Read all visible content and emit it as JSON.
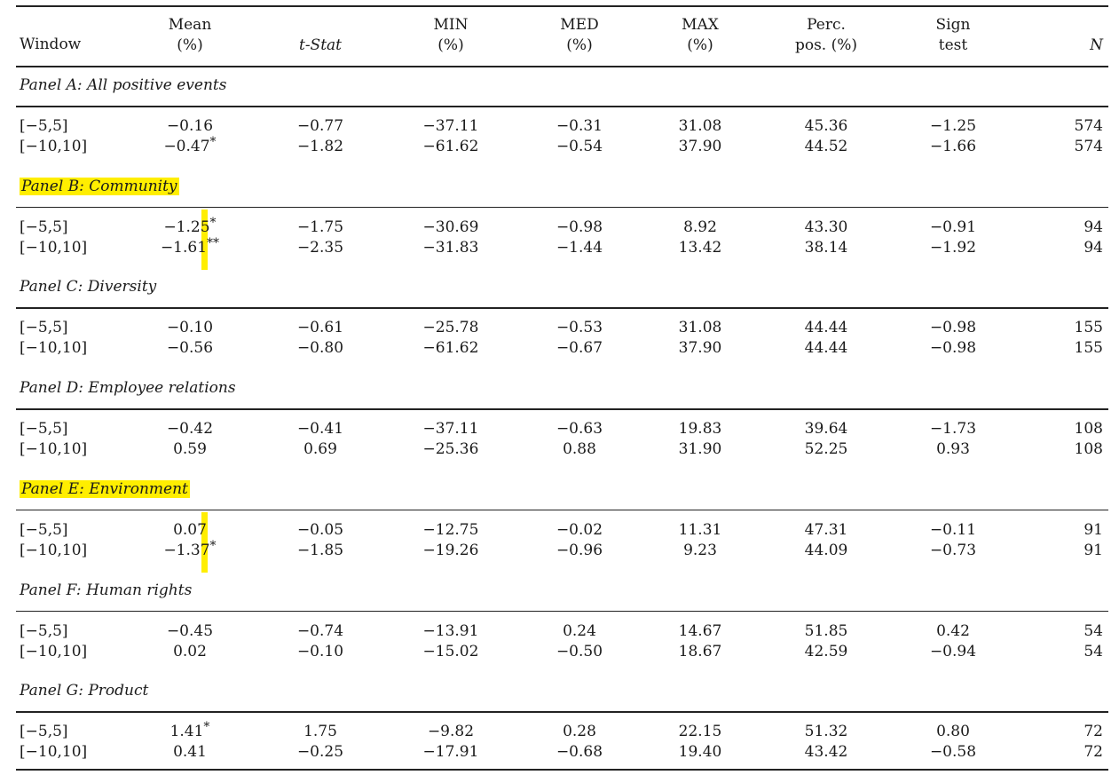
{
  "headers": {
    "window": "Window",
    "mean": [
      "Mean",
      "(%)"
    ],
    "tstat": "t-Stat",
    "min": [
      "MIN",
      "(%)"
    ],
    "med": [
      "MED",
      "(%)"
    ],
    "max": [
      "MAX",
      "(%)"
    ],
    "perc": [
      "Perc.",
      "pos. (%)"
    ],
    "sign": [
      "Sign",
      "test"
    ],
    "n": "N"
  },
  "panels": [
    {
      "title": "Panel A: All positive events",
      "highlight": false,
      "rows": [
        {
          "window": "[−5,5]",
          "mean": "−0.16",
          "mean_star": "",
          "t": "−0.77",
          "min": "−37.11",
          "med": "−0.31",
          "max": "31.08",
          "perc": "45.36",
          "sign": "−1.25",
          "n": "574"
        },
        {
          "window": "[−10,10]",
          "mean": "−0.47",
          "mean_star": "*",
          "t": "−1.82",
          "min": "−61.62",
          "med": "−0.54",
          "max": "37.90",
          "perc": "44.52",
          "sign": "−1.66",
          "n": "574"
        }
      ]
    },
    {
      "title": "Panel B: Community",
      "highlight": true,
      "rows": [
        {
          "window": "[−5,5]",
          "mean": "−1.25",
          "mean_star": "*",
          "t": "−1.75",
          "min": "−30.69",
          "med": "−0.98",
          "max": "8.92",
          "perc": "43.30",
          "sign": "−0.91",
          "n": "94"
        },
        {
          "window": "[−10,10]",
          "mean": "−1.61",
          "mean_star": "**",
          "t": "−2.35",
          "min": "−31.83",
          "med": "−1.44",
          "max": "13.42",
          "perc": "38.14",
          "sign": "−1.92",
          "n": "94"
        }
      ]
    },
    {
      "title": "Panel C: Diversity",
      "highlight": false,
      "rows": [
        {
          "window": "[−5,5]",
          "mean": "−0.10",
          "mean_star": "",
          "t": "−0.61",
          "min": "−25.78",
          "med": "−0.53",
          "max": "31.08",
          "perc": "44.44",
          "sign": "−0.98",
          "n": "155"
        },
        {
          "window": "[−10,10]",
          "mean": "−0.56",
          "mean_star": "",
          "t": "−0.80",
          "min": "−61.62",
          "med": "−0.67",
          "max": "37.90",
          "perc": "44.44",
          "sign": "−0.98",
          "n": "155"
        }
      ]
    },
    {
      "title": "Panel D: Employee relations",
      "highlight": false,
      "rows": [
        {
          "window": "[−5,5]",
          "mean": "−0.42",
          "mean_star": "",
          "t": "−0.41",
          "min": "−37.11",
          "med": "−0.63",
          "max": "19.83",
          "perc": "39.64",
          "sign": "−1.73",
          "n": "108"
        },
        {
          "window": "[−10,10]",
          "mean": "0.59",
          "mean_star": "",
          "t": "0.69",
          "min": "−25.36",
          "med": "0.88",
          "max": "31.90",
          "perc": "52.25",
          "sign": "0.93",
          "n": "108"
        }
      ]
    },
    {
      "title": "Panel E: Environment",
      "highlight": true,
      "rows": [
        {
          "window": "[−5,5]",
          "mean": "0.07",
          "mean_star": "",
          "t": "−0.05",
          "min": "−12.75",
          "med": "−0.02",
          "max": "11.31",
          "perc": "47.31",
          "sign": "−0.11",
          "n": "91"
        },
        {
          "window": "[−10,10]",
          "mean": "−1.37",
          "mean_star": "*",
          "t": "−1.85",
          "min": "−19.26",
          "med": "−0.96",
          "max": "9.23",
          "perc": "44.09",
          "sign": "−0.73",
          "n": "91"
        }
      ]
    },
    {
      "title": "Panel F: Human rights",
      "highlight": false,
      "rows": [
        {
          "window": "[−5,5]",
          "mean": "−0.45",
          "mean_star": "",
          "t": "−0.74",
          "min": "−13.91",
          "med": "0.24",
          "max": "14.67",
          "perc": "51.85",
          "sign": "0.42",
          "n": "54"
        },
        {
          "window": "[−10,10]",
          "mean": "0.02",
          "mean_star": "",
          "t": "−0.10",
          "min": "−15.02",
          "med": "−0.50",
          "max": "18.67",
          "perc": "42.59",
          "sign": "−0.94",
          "n": "54"
        }
      ]
    },
    {
      "title": "Panel G: Product",
      "highlight": false,
      "rows": [
        {
          "window": "[−5,5]",
          "mean": "1.41",
          "mean_star": "*",
          "t": "1.75",
          "min": "−9.82",
          "med": "0.28",
          "max": "22.15",
          "perc": "51.32",
          "sign": "0.80",
          "n": "72"
        },
        {
          "window": "[−10,10]",
          "mean": "0.41",
          "mean_star": "",
          "t": "−0.25",
          "min": "−17.91",
          "med": "−0.68",
          "max": "19.40",
          "perc": "43.42",
          "sign": "−0.58",
          "n": "72"
        }
      ]
    }
  ],
  "colors": {
    "highlight": "#ffee00",
    "rule": "#222222",
    "text": "#1a1a1a"
  }
}
